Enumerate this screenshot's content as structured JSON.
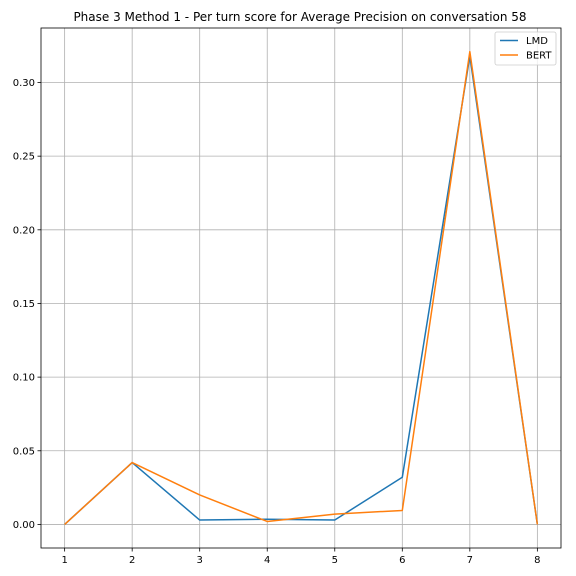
{
  "chart_data": {
    "type": "line",
    "title": "Phase 3 Method 1 - Per turn score for Average Precision on conversation 58",
    "xlabel": "",
    "ylabel": "",
    "x": [
      1,
      2,
      3,
      4,
      5,
      6,
      7,
      8
    ],
    "xticks": [
      "1",
      "2",
      "3",
      "4",
      "5",
      "6",
      "7",
      "8"
    ],
    "xlim": [
      0.65,
      8.35
    ],
    "yticks": [
      "0.00",
      "0.05",
      "0.10",
      "0.15",
      "0.20",
      "0.25",
      "0.30"
    ],
    "ylim": [
      -0.016,
      0.337
    ],
    "grid": true,
    "legend_position": "top-right",
    "series": [
      {
        "name": "LMD",
        "color": "#1f77b4",
        "values": [
          0.0,
          0.042,
          0.003,
          0.0035,
          0.003,
          0.032,
          0.318,
          0.0
        ]
      },
      {
        "name": "BERT",
        "color": "#ff7f0e",
        "values": [
          0.0,
          0.042,
          0.02,
          0.002,
          0.007,
          0.0095,
          0.321,
          0.0
        ]
      }
    ]
  }
}
